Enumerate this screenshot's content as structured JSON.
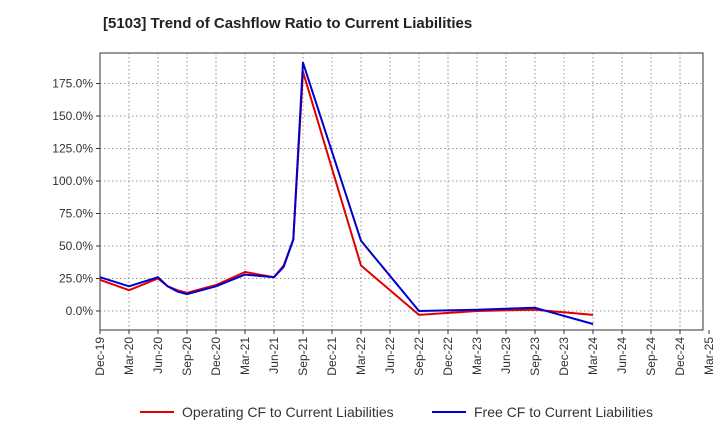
{
  "chart_data": {
    "type": "line",
    "title": "[5103]  Trend of Cashflow Ratio to Current Liabilities",
    "xlabel": "",
    "ylabel": "",
    "x_ticks": [
      "Dec-19",
      "Mar-20",
      "Jun-20",
      "Sep-20",
      "Dec-20",
      "Mar-21",
      "Jun-21",
      "Sep-21",
      "Dec-21",
      "Mar-22",
      "Jun-22",
      "Sep-22",
      "Dec-22",
      "Mar-23",
      "Jun-23",
      "Sep-23",
      "Dec-23",
      "Mar-24",
      "Jun-24",
      "Sep-24",
      "Dec-24",
      "Mar-25"
    ],
    "y_ticks": [
      "0.0%",
      "25.0%",
      "50.0%",
      "75.0%",
      "100.0%",
      "125.0%",
      "150.0%",
      "175.0%"
    ],
    "ylim": [
      -15,
      192
    ],
    "grid": true,
    "legend_position": "bottom",
    "series": [
      {
        "name": "Operating CF to Current Liabilities",
        "color": "#e00000",
        "points": [
          [
            "Dec-19",
            24
          ],
          [
            "Mar-20",
            16
          ],
          [
            "Jun-20",
            25
          ],
          [
            "Jul-20",
            19
          ],
          [
            "Aug-20",
            16
          ],
          [
            "Sep-20",
            14
          ],
          [
            "Dec-20",
            20
          ],
          [
            "Mar-21",
            30
          ],
          [
            "Jun-21",
            26
          ],
          [
            "Jul-21",
            35
          ],
          [
            "Aug-21",
            55
          ],
          [
            "Sep-21",
            184
          ],
          [
            "Mar-22",
            35
          ],
          [
            "Sep-22",
            -3
          ],
          [
            "Mar-23",
            0
          ],
          [
            "Sep-23",
            1
          ],
          [
            "Mar-24",
            -3
          ]
        ]
      },
      {
        "name": "Free CF to Current Liabilities",
        "color": "#0000cc",
        "points": [
          [
            "Dec-19",
            26
          ],
          [
            "Mar-20",
            19
          ],
          [
            "Jun-20",
            26
          ],
          [
            "Jul-20",
            19
          ],
          [
            "Aug-20",
            15
          ],
          [
            "Sep-20",
            13
          ],
          [
            "Dec-20",
            19
          ],
          [
            "Mar-21",
            28
          ],
          [
            "Jun-21",
            26
          ],
          [
            "Jul-21",
            34
          ],
          [
            "Aug-21",
            55
          ],
          [
            "Sep-21",
            191
          ],
          [
            "Mar-22",
            54
          ],
          [
            "Sep-22",
            0
          ],
          [
            "Mar-23",
            1
          ],
          [
            "Sep-23",
            2.5
          ],
          [
            "Mar-24",
            -10
          ]
        ]
      }
    ]
  }
}
